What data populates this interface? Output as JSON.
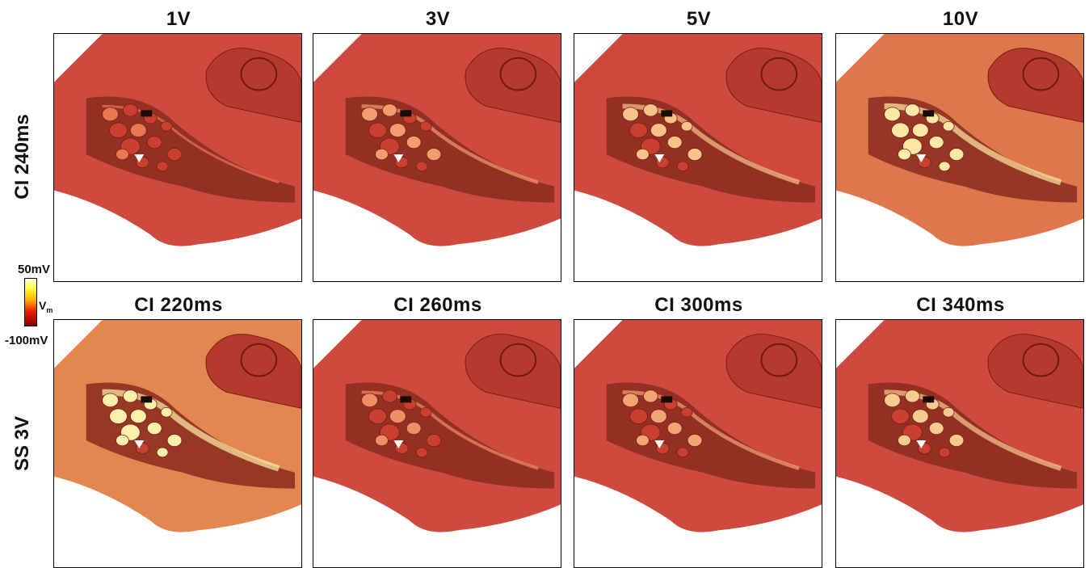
{
  "columns": [
    "1V",
    "3V",
    "5V",
    "10V"
  ],
  "row2_columns": [
    "CI 220ms",
    "CI 260ms",
    "CI 300ms",
    "CI 340ms"
  ],
  "rows": [
    "CI 240ms",
    "SS 3V"
  ],
  "colorbar": {
    "max": "50mV",
    "label": "V",
    "label_sub": "m",
    "min": "-100mV"
  },
  "colors": {
    "tissue": "#d84a3c",
    "bright": "#ffe060",
    "white": "#ffffff"
  },
  "panel_intensity": [
    [
      0.15,
      0.4,
      0.65,
      0.9
    ],
    [
      0.95,
      0.3,
      0.45,
      0.7
    ]
  ]
}
